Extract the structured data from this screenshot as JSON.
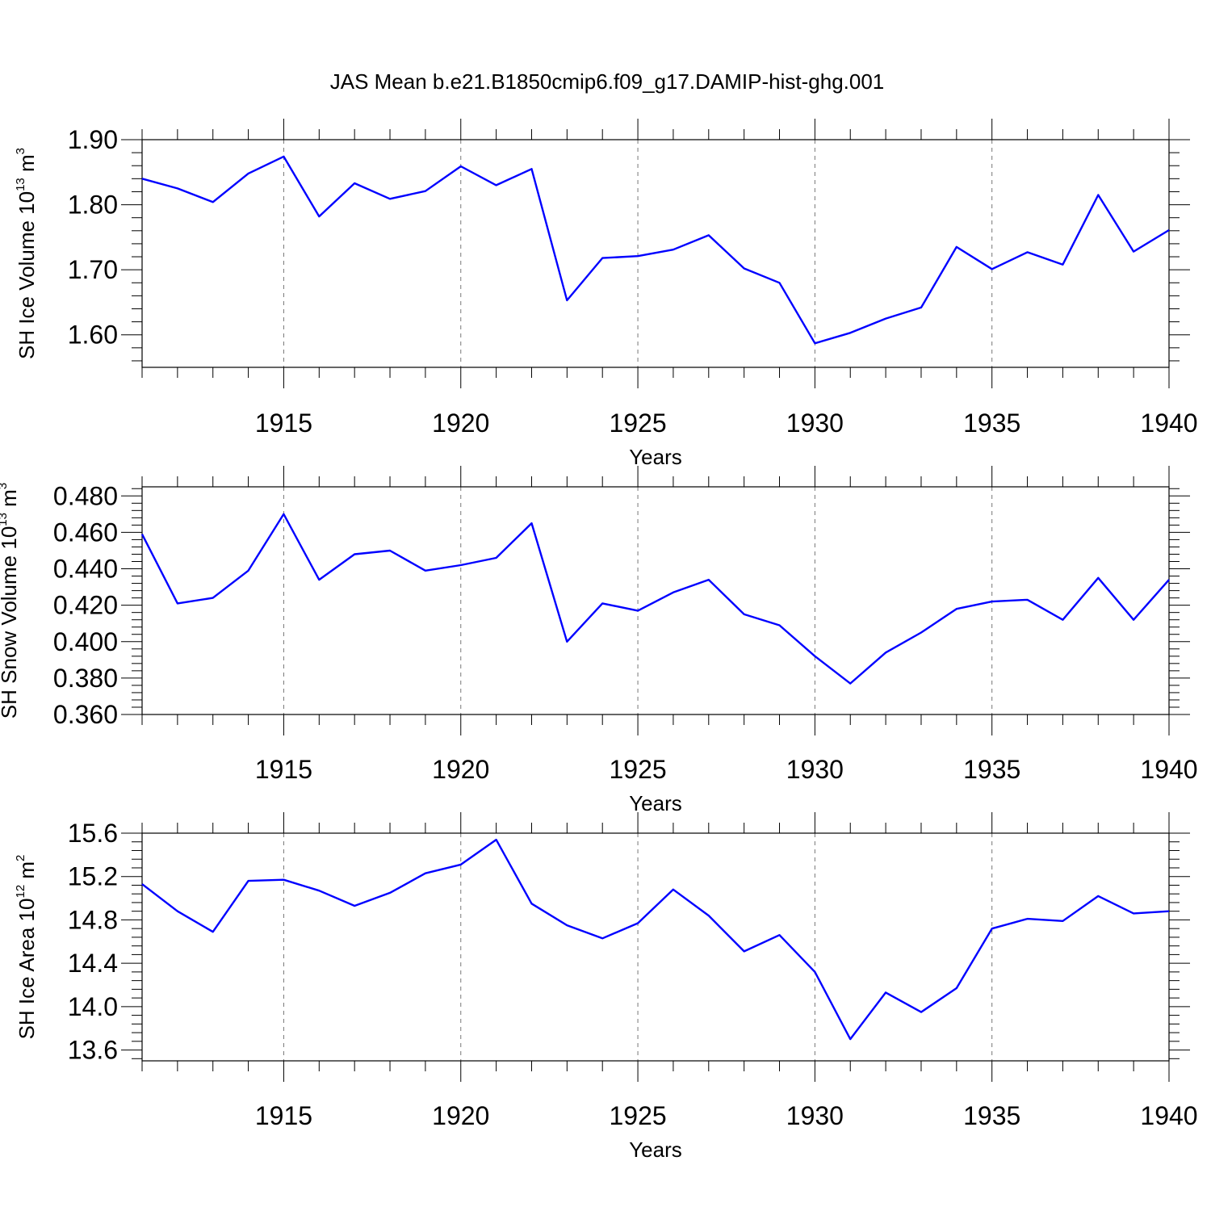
{
  "title": "JAS Mean b.e21.B1850cmip6.f09_g17.DAMIP-hist-ghg.001",
  "colors": {
    "line": "#0000ff",
    "axis": "#000000",
    "grid": "#777777"
  },
  "chart_data": [
    {
      "type": "line",
      "ylabel": {
        "main": "SH Ice Volume 10",
        "sup": "13",
        "unit": " m",
        "unit_sup": "3"
      },
      "xlabel": "Years",
      "xlim": [
        1911,
        1940
      ],
      "ylim": [
        1.55,
        1.9
      ],
      "ytick_values": [
        1.6,
        1.7,
        1.8,
        1.9
      ],
      "ytick_labels": [
        "1.60",
        "1.70",
        "1.80",
        "1.90"
      ],
      "yminor_step": 0.02,
      "xtick_values": [
        1915,
        1920,
        1925,
        1930,
        1935,
        1940
      ],
      "xtick_labels": [
        "1915",
        "1920",
        "1925",
        "1930",
        "1935",
        "1940"
      ],
      "x": [
        1911,
        1912,
        1913,
        1914,
        1915,
        1916,
        1917,
        1918,
        1919,
        1920,
        1921,
        1922,
        1923,
        1924,
        1925,
        1926,
        1927,
        1928,
        1929,
        1930,
        1931,
        1932,
        1933,
        1934,
        1935,
        1936,
        1937,
        1938,
        1939,
        1940
      ],
      "series": [
        {
          "name": "SH Ice Volume",
          "values": [
            1.84,
            1.825,
            1.804,
            1.848,
            1.874,
            1.782,
            1.833,
            1.809,
            1.821,
            1.859,
            1.83,
            1.855,
            1.653,
            1.718,
            1.721,
            1.731,
            1.753,
            1.702,
            1.68,
            1.587,
            1.603,
            1.625,
            1.642,
            1.735,
            1.701,
            1.727,
            1.708,
            1.815,
            1.728,
            1.761
          ]
        }
      ]
    },
    {
      "type": "line",
      "ylabel": {
        "main": "SH Snow Volume 10",
        "sup": "13",
        "unit": " m",
        "unit_sup": "3"
      },
      "xlabel": "Years",
      "xlim": [
        1911,
        1940
      ],
      "ylim": [
        0.36,
        0.485
      ],
      "ytick_values": [
        0.36,
        0.38,
        0.4,
        0.42,
        0.44,
        0.46,
        0.48
      ],
      "ytick_labels": [
        "0.360",
        "0.380",
        "0.400",
        "0.420",
        "0.440",
        "0.460",
        "0.480"
      ],
      "yminor_step": 0.004,
      "xtick_values": [
        1915,
        1920,
        1925,
        1930,
        1935,
        1940
      ],
      "xtick_labels": [
        "1915",
        "1920",
        "1925",
        "1930",
        "1935",
        "1940"
      ],
      "x": [
        1911,
        1912,
        1913,
        1914,
        1915,
        1916,
        1917,
        1918,
        1919,
        1920,
        1921,
        1922,
        1923,
        1924,
        1925,
        1926,
        1927,
        1928,
        1929,
        1930,
        1931,
        1932,
        1933,
        1934,
        1935,
        1936,
        1937,
        1938,
        1939,
        1940
      ],
      "series": [
        {
          "name": "SH Snow Volume",
          "values": [
            0.459,
            0.421,
            0.424,
            0.439,
            0.47,
            0.434,
            0.448,
            0.45,
            0.439,
            0.442,
            0.446,
            0.465,
            0.4,
            0.421,
            0.417,
            0.427,
            0.434,
            0.415,
            0.409,
            0.392,
            0.377,
            0.394,
            0.405,
            0.418,
            0.422,
            0.423,
            0.412,
            0.435,
            0.412,
            0.434
          ]
        }
      ]
    },
    {
      "type": "line",
      "ylabel": {
        "main": "SH Ice Area 10",
        "sup": "12",
        "unit": " m",
        "unit_sup": "2"
      },
      "xlabel": "Years",
      "xlim": [
        1911,
        1940
      ],
      "ylim": [
        13.5,
        15.6
      ],
      "ytick_values": [
        13.6,
        14.0,
        14.4,
        14.8,
        15.2,
        15.6
      ],
      "ytick_labels": [
        "13.6",
        "14.0",
        "14.4",
        "14.8",
        "15.2",
        "15.6"
      ],
      "yminor_step": 0.08,
      "xtick_values": [
        1915,
        1920,
        1925,
        1930,
        1935,
        1940
      ],
      "xtick_labels": [
        "1915",
        "1920",
        "1925",
        "1930",
        "1935",
        "1940"
      ],
      "x": [
        1911,
        1912,
        1913,
        1914,
        1915,
        1916,
        1917,
        1918,
        1919,
        1920,
        1921,
        1922,
        1923,
        1924,
        1925,
        1926,
        1927,
        1928,
        1929,
        1930,
        1931,
        1932,
        1933,
        1934,
        1935,
        1936,
        1937,
        1938,
        1939,
        1940
      ],
      "series": [
        {
          "name": "SH Ice Area",
          "values": [
            15.13,
            14.88,
            14.69,
            15.16,
            15.17,
            15.07,
            14.93,
            15.05,
            15.23,
            15.31,
            15.54,
            14.95,
            14.75,
            14.63,
            14.77,
            15.08,
            14.84,
            14.51,
            14.66,
            14.32,
            13.7,
            14.13,
            13.95,
            14.17,
            14.72,
            14.81,
            14.79,
            15.02,
            14.86,
            14.88
          ]
        }
      ]
    }
  ]
}
